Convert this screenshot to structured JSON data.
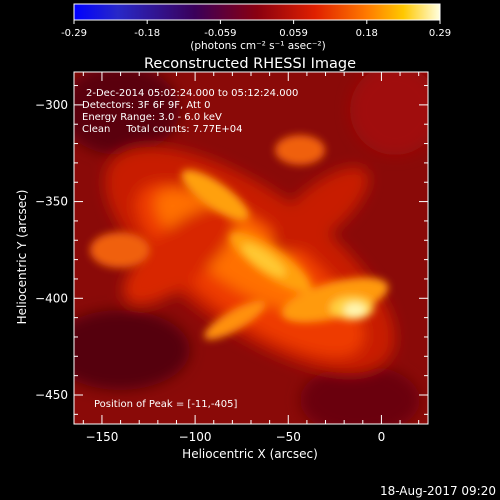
{
  "colorbar": {
    "ticks": [
      "-0.29",
      "-0.18",
      "-0.059",
      "0.059",
      "0.18",
      "0.29"
    ],
    "unit_label": "(photons cm⁻² s⁻¹ asec⁻²)",
    "range": [
      -0.29,
      0.29
    ],
    "colormap": "blue-black-red-orange-yellow-white"
  },
  "chart_data": {
    "type": "heatmap",
    "title": "Reconstructed RHESSI Image",
    "xlabel": "Heliocentric X (arcsec)",
    "ylabel": "Heliocentric Y (arcsec)",
    "xlim": [
      -165,
      25
    ],
    "ylim": [
      -465,
      -283
    ],
    "xticks": [
      -150,
      -100,
      -50,
      0
    ],
    "yticks": [
      -300,
      -350,
      -400,
      -450
    ],
    "annotations": [
      "2-Dec-2014 05:02:24.000 to 05:12:24.000",
      "Detectors: 3F 6F 9F, Att 0",
      "Energy Range: 3.0 - 6.0 keV",
      "Clean     Total counts: 7.77E+04"
    ],
    "peak_label": "Position of Peak = [-11,-405]",
    "peak": [
      -11,
      -405
    ]
  },
  "footer": {
    "timestamp": "18-Aug-2017 09:20"
  }
}
